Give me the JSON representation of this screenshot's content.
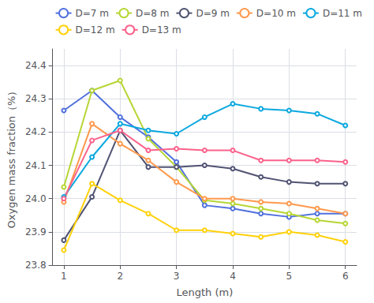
{
  "chart_data": {
    "type": "line",
    "xlabel": "Length (m)",
    "ylabel": "Oxygen mass fraction（%）",
    "xlim": [
      0.8,
      6.2
    ],
    "ylim": [
      23.8,
      24.45
    ],
    "xticks": [
      1,
      2,
      3,
      4,
      5,
      6
    ],
    "yticks": [
      23.8,
      23.9,
      {
        "value": 24,
        "label": "24.0"
      },
      24.1,
      24.2,
      24.3,
      24.4
    ],
    "grid": true,
    "legend": "upper right",
    "x": [
      1.0,
      1.5,
      2.0,
      2.5,
      3.0,
      3.5,
      4.0,
      4.5,
      5.0,
      5.5,
      6.0
    ],
    "series": [
      {
        "name": "D=7 m",
        "values": [
          24.265,
          24.325,
          24.245,
          24.185,
          24.11,
          23.98,
          23.97,
          23.955,
          23.945,
          23.955,
          23.955
        ]
      },
      {
        "name": "D=8 m",
        "values": [
          24.035,
          24.325,
          24.355,
          24.18,
          24.095,
          23.995,
          23.985,
          23.97,
          23.955,
          23.935,
          23.925
        ]
      },
      {
        "name": "D=9 m",
        "values": [
          23.875,
          24.005,
          24.205,
          24.095,
          24.095,
          24.1,
          24.09,
          24.065,
          24.05,
          24.045,
          24.045
        ]
      },
      {
        "name": "D=10 m",
        "values": [
          23.99,
          24.225,
          24.165,
          24.115,
          24.05,
          24.0,
          24.0,
          23.99,
          23.985,
          23.97,
          23.955
        ]
      },
      {
        "name": "D=11 m",
        "values": [
          24.005,
          24.125,
          24.225,
          24.205,
          24.195,
          24.245,
          24.285,
          24.27,
          24.265,
          24.255,
          24.22
        ]
      },
      {
        "name": "D=12 m",
        "values": [
          23.845,
          24.045,
          23.995,
          23.955,
          23.905,
          23.905,
          23.895,
          23.885,
          23.9,
          23.89,
          23.87
        ]
      },
      {
        "name": "D=13 m",
        "values": [
          24.0,
          24.175,
          24.205,
          24.145,
          24.15,
          24.145,
          24.145,
          24.115,
          24.115,
          24.115,
          24.11
        ]
      }
    ]
  }
}
